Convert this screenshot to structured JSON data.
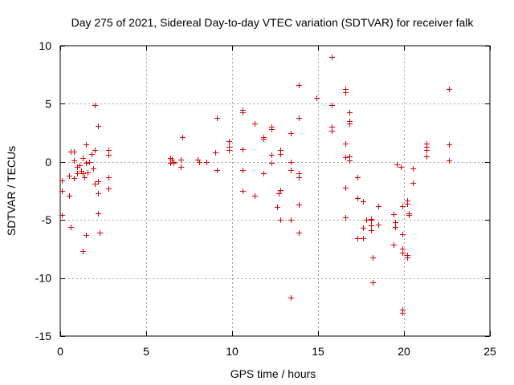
{
  "chart_data": {
    "type": "scatter",
    "title": "Day 275 of 2021, Sidereal Day-to-day VTEC variation (SDTVAR) for receiver falk",
    "xlabel": "GPS time / hours",
    "ylabel": "SDTVAR / TECUs",
    "xlim": [
      0,
      25
    ],
    "ylim": [
      -15,
      10
    ],
    "x_ticks": [
      0,
      5,
      10,
      15,
      20,
      25
    ],
    "x_tick_labels": [
      "0",
      "5",
      "10",
      "15",
      "20",
      "25"
    ],
    "y_ticks": [
      -15,
      -10,
      -5,
      0,
      5,
      10
    ],
    "y_tick_labels": [
      "-15",
      "-10",
      "-5",
      "0",
      "5",
      "10"
    ],
    "grid": true,
    "marker": "plus",
    "color": "#e00000",
    "series": [
      {
        "name": "SDTVAR",
        "points": [
          [
            0.1,
            -1.6
          ],
          [
            0.1,
            -2.5
          ],
          [
            0.1,
            -4.6
          ],
          [
            0.5,
            -1.2
          ],
          [
            0.5,
            -2.9
          ],
          [
            0.6,
            -5.6
          ],
          [
            0.6,
            0.9
          ],
          [
            0.8,
            0.9
          ],
          [
            0.8,
            -1.4
          ],
          [
            0.8,
            0.1
          ],
          [
            1.0,
            -0.4
          ],
          [
            1.0,
            -1.0
          ],
          [
            1.1,
            -0.3
          ],
          [
            1.2,
            -0.8
          ],
          [
            1.3,
            0.3
          ],
          [
            1.3,
            -7.7
          ],
          [
            1.3,
            -1.0
          ],
          [
            1.4,
            -1.3
          ],
          [
            1.5,
            -0.1
          ],
          [
            1.5,
            1.5
          ],
          [
            1.5,
            -6.3
          ],
          [
            1.6,
            -0.9
          ],
          [
            1.7,
            0.0
          ],
          [
            1.8,
            0.7
          ],
          [
            1.9,
            -0.6
          ],
          [
            2.0,
            1.0
          ],
          [
            2.0,
            -1.9
          ],
          [
            2.0,
            4.9
          ],
          [
            2.2,
            -1.7
          ],
          [
            2.2,
            -2.7
          ],
          [
            2.2,
            -4.4
          ],
          [
            2.2,
            3.1
          ],
          [
            2.3,
            -6.1
          ],
          [
            2.8,
            1.0
          ],
          [
            2.8,
            0.6
          ],
          [
            2.8,
            -1.3
          ],
          [
            2.8,
            -2.3
          ],
          [
            6.4,
            0.3
          ],
          [
            6.4,
            -0.1
          ],
          [
            6.5,
            0.2
          ],
          [
            6.6,
            -0.1
          ],
          [
            6.6,
            0.0
          ],
          [
            7.0,
            0.2
          ],
          [
            7.0,
            -0.4
          ],
          [
            7.1,
            2.1
          ],
          [
            8.0,
            0.2
          ],
          [
            8.1,
            0.0
          ],
          [
            8.5,
            0.0
          ],
          [
            9.0,
            0.8
          ],
          [
            9.1,
            3.8
          ],
          [
            9.1,
            -0.7
          ],
          [
            9.8,
            1.8
          ],
          [
            9.8,
            1.3
          ],
          [
            9.8,
            1.0
          ],
          [
            10.6,
            4.5
          ],
          [
            10.6,
            4.3
          ],
          [
            10.6,
            1.1
          ],
          [
            10.6,
            -0.7
          ],
          [
            10.6,
            -2.5
          ],
          [
            11.3,
            3.3
          ],
          [
            11.3,
            -2.9
          ],
          [
            11.8,
            2.1
          ],
          [
            11.8,
            2.0
          ],
          [
            11.8,
            -1.0
          ],
          [
            12.3,
            3.0
          ],
          [
            12.3,
            2.8
          ],
          [
            12.3,
            0.6
          ],
          [
            12.3,
            -0.1
          ],
          [
            12.6,
            -3.9
          ],
          [
            12.7,
            -2.7
          ],
          [
            12.8,
            -2.4
          ],
          [
            12.8,
            -5.0
          ],
          [
            12.8,
            0.7
          ],
          [
            12.8,
            1.0
          ],
          [
            13.4,
            2.5
          ],
          [
            13.4,
            0.0
          ],
          [
            13.4,
            -0.7
          ],
          [
            13.4,
            -5.0
          ],
          [
            13.4,
            -11.7
          ],
          [
            13.9,
            6.6
          ],
          [
            13.9,
            3.8
          ],
          [
            13.9,
            -1.0
          ],
          [
            13.9,
            -1.3
          ],
          [
            13.9,
            -3.7
          ],
          [
            13.9,
            -6.1
          ],
          [
            14.9,
            5.5
          ],
          [
            15.8,
            9.0
          ],
          [
            15.8,
            4.9
          ],
          [
            15.8,
            3.0
          ],
          [
            15.8,
            2.7
          ],
          [
            16.6,
            6.3
          ],
          [
            16.6,
            6.0
          ],
          [
            16.6,
            1.6
          ],
          [
            16.6,
            0.4
          ],
          [
            16.6,
            -2.2
          ],
          [
            16.6,
            -4.8
          ],
          [
            16.8,
            4.3
          ],
          [
            16.8,
            3.5
          ],
          [
            16.8,
            3.3
          ],
          [
            16.8,
            0.5
          ],
          [
            16.8,
            0.1
          ],
          [
            17.3,
            -1.3
          ],
          [
            17.3,
            -3.1
          ],
          [
            17.3,
            -6.6
          ],
          [
            17.6,
            -3.4
          ],
          [
            17.6,
            -5.7
          ],
          [
            17.6,
            -6.6
          ],
          [
            17.8,
            -5.0
          ],
          [
            18.1,
            -5.0
          ],
          [
            18.1,
            -4.9
          ],
          [
            18.1,
            -5.5
          ],
          [
            18.1,
            -5.9
          ],
          [
            18.2,
            -8.2
          ],
          [
            18.2,
            -10.4
          ],
          [
            18.5,
            -5.4
          ],
          [
            18.5,
            -3.8
          ],
          [
            19.4,
            -4.5
          ],
          [
            19.4,
            -7.1
          ],
          [
            19.5,
            -5.6
          ],
          [
            19.5,
            -5.2
          ],
          [
            19.6,
            -0.2
          ],
          [
            19.8,
            -0.4
          ],
          [
            19.9,
            -3.8
          ],
          [
            19.9,
            -6.2
          ],
          [
            19.9,
            -7.5
          ],
          [
            19.9,
            -7.8
          ],
          [
            19.9,
            -12.7
          ],
          [
            19.9,
            -13.0
          ],
          [
            20.2,
            -3.3
          ],
          [
            20.2,
            -3.6
          ],
          [
            20.2,
            -8.0
          ],
          [
            20.2,
            -8.2
          ],
          [
            20.3,
            -4.4
          ],
          [
            20.3,
            -4.6
          ],
          [
            20.5,
            -1.8
          ],
          [
            20.5,
            -0.6
          ],
          [
            21.3,
            1.6
          ],
          [
            21.3,
            1.3
          ],
          [
            21.3,
            1.0
          ],
          [
            21.3,
            0.5
          ],
          [
            22.6,
            6.3
          ],
          [
            22.6,
            1.5
          ],
          [
            22.6,
            0.1
          ]
        ]
      }
    ]
  }
}
